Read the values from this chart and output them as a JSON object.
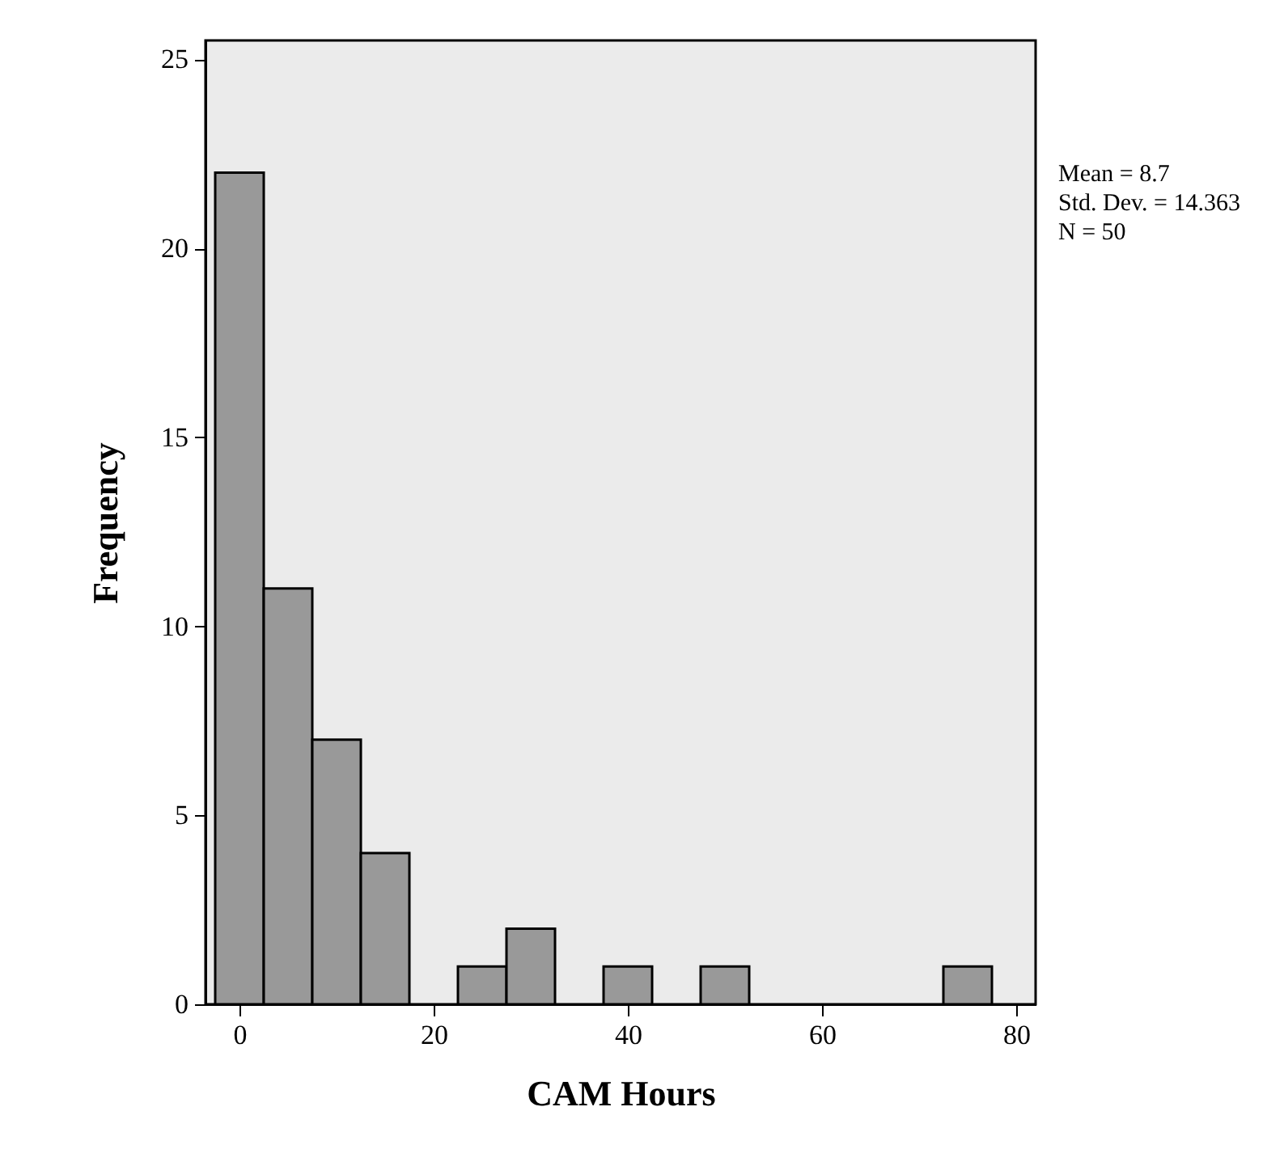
{
  "chart_data": {
    "type": "histogram",
    "xlabel": "CAM Hours",
    "ylabel": "Frequency",
    "bins": [
      -2.5,
      2.5,
      7.5,
      12.5,
      17.5,
      22.5,
      27.5,
      32.5,
      37.5,
      42.5,
      47.5,
      52.5,
      57.5,
      62.5,
      67.5,
      72.5,
      77.5
    ],
    "values": [
      22,
      11,
      7,
      4,
      0,
      1,
      2,
      0,
      1,
      0,
      1,
      0,
      0,
      0,
      0,
      1
    ],
    "color": "#999999",
    "xlim": [
      -3.5,
      82
    ],
    "xticks": [
      0,
      20,
      40,
      60,
      80
    ],
    "ylim": [
      0,
      25.5
    ],
    "yticks": [
      0,
      5,
      10,
      15,
      20,
      25
    ],
    "grid": false,
    "annotations": [
      "Mean = 8.7",
      "Std. Dev. = 14.363",
      "N = 50"
    ]
  }
}
